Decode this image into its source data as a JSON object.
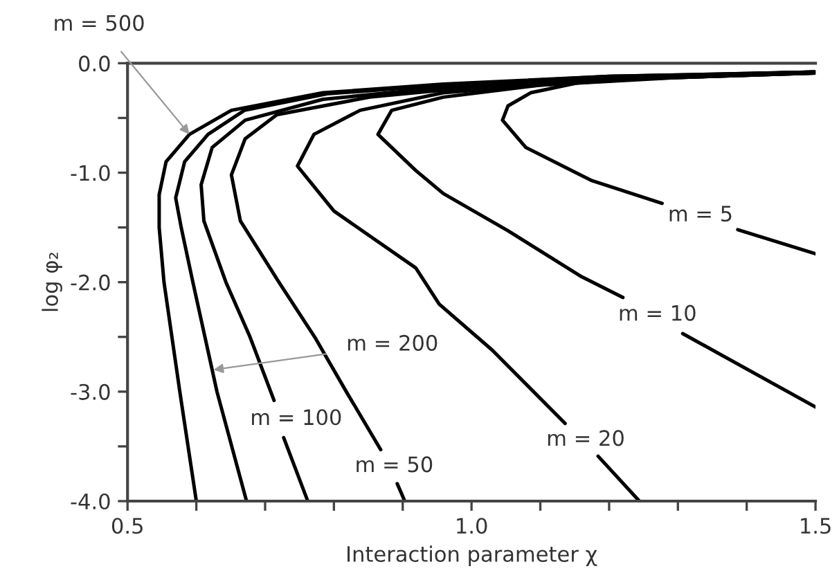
{
  "chart_data": {
    "type": "line",
    "xlabel": "Interaction parameter χ",
    "ylabel": "log φ₂",
    "xlim": [
      0.5,
      1.5
    ],
    "ylim": [
      -4.0,
      0.0
    ],
    "xticks": [
      {
        "value": 0.5,
        "label": "0.5"
      },
      {
        "value": 0.6,
        "label": null
      },
      {
        "value": 0.7,
        "label": null
      },
      {
        "value": 0.8,
        "label": null
      },
      {
        "value": 0.9,
        "label": null
      },
      {
        "value": 1.0,
        "label": "1.0"
      },
      {
        "value": 1.1,
        "label": null
      },
      {
        "value": 1.2,
        "label": null
      },
      {
        "value": 1.3,
        "label": null
      },
      {
        "value": 1.4,
        "label": null
      },
      {
        "value": 1.5,
        "label": "1.5"
      }
    ],
    "yticks": [
      {
        "value": 0.0,
        "label": "0.0"
      },
      {
        "value": -0.5,
        "label": null
      },
      {
        "value": -1.0,
        "label": "-1.0"
      },
      {
        "value": -1.5,
        "label": null
      },
      {
        "value": -2.0,
        "label": "-2.0"
      },
      {
        "value": -2.5,
        "label": null
      },
      {
        "value": -3.0,
        "label": "-3.0"
      },
      {
        "value": -3.5,
        "label": null
      },
      {
        "value": -4.0,
        "label": "-4.0"
      }
    ],
    "grid": false,
    "legend": false,
    "series": [
      {
        "color": "#000000",
        "x": [
          0.6,
          0.576,
          0.553,
          0.546,
          0.546,
          0.556,
          0.59,
          0.651,
          0.784,
          0.959,
          1.2,
          1.5
        ],
        "values": [
          -4.0,
          -3.0,
          -2.0,
          -1.5,
          -1.2,
          -0.9,
          -0.65,
          -0.43,
          -0.27,
          -0.19,
          -0.12,
          -0.08
        ]
      },
      {
        "color": "#000000",
        "x": [
          0.673,
          0.63,
          0.595,
          0.578,
          0.57,
          0.583,
          0.617,
          0.67,
          0.79,
          0.959,
          1.2,
          1.5
        ],
        "values": [
          -4.0,
          -3.0,
          -2.0,
          -1.5,
          -1.23,
          -0.9,
          -0.65,
          -0.43,
          -0.28,
          -0.2,
          -0.12,
          -0.08
        ]
      },
      {
        "color": "#000000",
        "x": [
          0.762,
          0.727,
          null,
          0.713,
          0.678,
          0.643,
          0.611,
          0.607,
          0.623,
          0.671,
          0.784,
          0.959,
          1.2,
          1.5
        ],
        "values": [
          -4.0,
          -3.42,
          null,
          -3.08,
          -2.5,
          -2.0,
          -1.44,
          -1.11,
          -0.77,
          -0.52,
          -0.33,
          -0.22,
          -0.13,
          -0.08
        ]
      },
      {
        "color": "#000000",
        "x": [
          0.903,
          0.892,
          null,
          0.868,
          0.818,
          0.772,
          0.72,
          0.664,
          0.651,
          0.671,
          0.717,
          0.852,
          1.0,
          1.2,
          1.5
        ],
        "values": [
          -4.0,
          -3.84,
          null,
          -3.53,
          -3.0,
          -2.5,
          -2.0,
          -1.44,
          -1.02,
          -0.69,
          -0.47,
          -0.31,
          -0.22,
          -0.13,
          -0.08
        ]
      },
      {
        "color": "#000000",
        "x": [
          1.244,
          1.184,
          null,
          1.136,
          1.03,
          0.953,
          0.919,
          0.8,
          0.747,
          0.771,
          0.838,
          0.959,
          1.2,
          1.5
        ],
        "values": [
          -4.0,
          -3.59,
          null,
          -3.29,
          -2.62,
          -2.2,
          -1.87,
          -1.35,
          -0.94,
          -0.65,
          -0.43,
          -0.27,
          -0.15,
          -0.09
        ]
      },
      {
        "color": "#000000",
        "x": [
          1.5,
          1.307,
          null,
          1.22,
          1.16,
          1.053,
          0.959,
          0.919,
          0.864,
          0.884,
          0.959,
          1.1,
          1.3,
          1.5
        ],
        "values": [
          -3.14,
          -2.47,
          null,
          -2.14,
          -1.95,
          -1.53,
          -1.19,
          -0.98,
          -0.65,
          -0.43,
          -0.31,
          -0.2,
          -0.13,
          -0.09
        ]
      },
      {
        "color": "#000000",
        "x": [
          1.5,
          1.387,
          null,
          1.277,
          1.174,
          1.079,
          1.045,
          1.053,
          1.086,
          1.154,
          1.255,
          1.5
        ],
        "values": [
          -1.74,
          -1.52,
          null,
          -1.28,
          -1.07,
          -0.77,
          -0.52,
          -0.39,
          -0.27,
          -0.18,
          -0.14,
          -0.09
        ]
      }
    ],
    "annotations": [
      {
        "text": "m = 500",
        "x": 0.59,
        "y": -0.65
      },
      {
        "text": "m = 200",
        "x": 0.625,
        "y": -2.8
      },
      {
        "text": "m = 100",
        "x": 0.713,
        "y": -3.08
      },
      {
        "text": "m = 50",
        "x": 0.868,
        "y": -3.53
      },
      {
        "text": "m = 20",
        "x": 1.136,
        "y": -3.29
      },
      {
        "text": "m = 10",
        "x": 1.22,
        "y": -2.14
      },
      {
        "text": "m = 5",
        "x": 1.277,
        "y": -1.28
      }
    ]
  }
}
